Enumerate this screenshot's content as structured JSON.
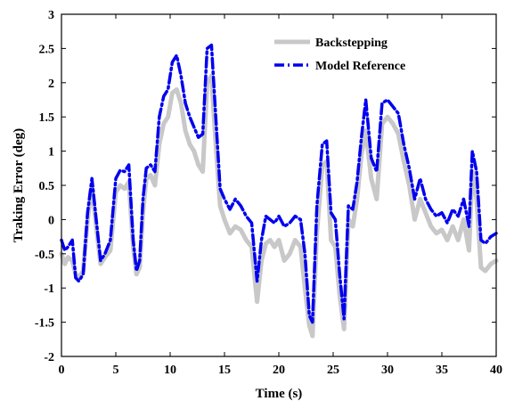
{
  "chart_data": {
    "type": "line",
    "title": "",
    "xlabel": "Time (s)",
    "ylabel": "Traking Error (deg)",
    "xlim": [
      0,
      40
    ],
    "ylim": [
      -2,
      3
    ],
    "xticks": [
      "0",
      "5",
      "10",
      "15",
      "20",
      "25",
      "30",
      "35",
      "40"
    ],
    "yticks": [
      "-2",
      "-1.5",
      "-1",
      "-0.5",
      "0",
      "0.5",
      "1",
      "1.5",
      "2",
      "2.5",
      "3"
    ],
    "grid": false,
    "legend_position": "top-right",
    "series": [
      {
        "name": "Backstepping",
        "color": "#c8c8c8",
        "style": "solid",
        "x": [
          0,
          0.3,
          0.6,
          1.0,
          1.3,
          1.6,
          2.0,
          2.4,
          2.8,
          3.2,
          3.6,
          4.0,
          4.5,
          5.0,
          5.4,
          5.8,
          6.2,
          6.6,
          6.9,
          7.2,
          7.5,
          7.8,
          8.2,
          8.6,
          9.0,
          9.4,
          9.8,
          10.2,
          10.6,
          11.0,
          11.4,
          11.8,
          12.2,
          12.6,
          13.0,
          13.4,
          13.8,
          14.2,
          14.6,
          15.0,
          15.5,
          16.0,
          16.5,
          17.0,
          17.5,
          18.0,
          18.4,
          18.8,
          19.2,
          19.6,
          20.0,
          20.5,
          21.0,
          21.5,
          22.0,
          22.4,
          22.8,
          23.1,
          23.5,
          24.0,
          24.4,
          24.8,
          25.2,
          25.6,
          26.0,
          26.4,
          26.8,
          27.2,
          27.6,
          28.0,
          28.5,
          29.0,
          29.5,
          30.0,
          30.5,
          31.0,
          31.5,
          32.0,
          32.5,
          33.0,
          33.5,
          34.0,
          34.5,
          35.0,
          35.5,
          36.0,
          36.5,
          37.0,
          37.5,
          37.8,
          38.2,
          38.6,
          39.0,
          39.5,
          40.0
        ],
        "values": [
          -0.5,
          -0.65,
          -0.55,
          -0.6,
          -0.8,
          -0.85,
          -0.75,
          0.0,
          0.5,
          -0.1,
          -0.65,
          -0.55,
          -0.45,
          0.4,
          0.5,
          0.45,
          0.55,
          -0.4,
          -0.8,
          -0.7,
          0.1,
          0.6,
          0.65,
          0.5,
          1.1,
          1.4,
          1.5,
          1.85,
          1.9,
          1.7,
          1.3,
          1.1,
          1.0,
          0.8,
          0.7,
          2.0,
          2.1,
          1.1,
          0.2,
          0.0,
          -0.2,
          -0.1,
          -0.15,
          -0.3,
          -0.4,
          -1.2,
          -0.6,
          -0.35,
          -0.3,
          -0.4,
          -0.3,
          -0.6,
          -0.5,
          -0.3,
          -0.4,
          -1.0,
          -1.55,
          -1.7,
          -0.2,
          0.8,
          0.85,
          -0.3,
          -0.4,
          -1.1,
          -1.6,
          0.0,
          -0.1,
          0.3,
          0.95,
          1.3,
          0.6,
          0.3,
          1.4,
          1.5,
          1.4,
          1.25,
          0.85,
          0.5,
          0.0,
          0.3,
          0.1,
          -0.1,
          -0.2,
          -0.15,
          -0.3,
          -0.1,
          -0.3,
          0.0,
          -0.45,
          0.7,
          0.3,
          -0.7,
          -0.75,
          -0.65,
          -0.6
        ]
      },
      {
        "name": "Model Reference",
        "color": "#0000ee",
        "style": "dash-dot",
        "x": [
          0,
          0.3,
          0.6,
          1.0,
          1.3,
          1.6,
          2.0,
          2.4,
          2.8,
          3.2,
          3.6,
          4.0,
          4.5,
          5.0,
          5.4,
          5.8,
          6.2,
          6.6,
          6.9,
          7.2,
          7.5,
          7.8,
          8.2,
          8.6,
          9.0,
          9.4,
          9.8,
          10.2,
          10.6,
          11.0,
          11.4,
          11.8,
          12.2,
          12.6,
          13.0,
          13.4,
          13.8,
          14.2,
          14.6,
          15.0,
          15.5,
          16.0,
          16.5,
          17.0,
          17.5,
          18.0,
          18.4,
          18.8,
          19.2,
          19.6,
          20.0,
          20.5,
          21.0,
          21.5,
          22.0,
          22.4,
          22.8,
          23.1,
          23.5,
          24.0,
          24.4,
          24.8,
          25.2,
          25.6,
          26.0,
          26.4,
          26.8,
          27.2,
          27.6,
          28.0,
          28.5,
          29.0,
          29.5,
          30.0,
          30.5,
          31.0,
          31.5,
          32.0,
          32.5,
          33.0,
          33.5,
          34.0,
          34.5,
          35.0,
          35.5,
          36.0,
          36.5,
          37.0,
          37.5,
          37.8,
          38.2,
          38.6,
          39.0,
          39.5,
          40.0
        ],
        "values": [
          -0.3,
          -0.45,
          -0.4,
          -0.3,
          -0.85,
          -0.9,
          -0.8,
          0.1,
          0.6,
          0.0,
          -0.6,
          -0.5,
          -0.3,
          0.6,
          0.72,
          0.7,
          0.8,
          -0.3,
          -0.75,
          -0.6,
          0.3,
          0.75,
          0.8,
          0.7,
          1.5,
          1.8,
          1.9,
          2.3,
          2.4,
          2.1,
          1.7,
          1.5,
          1.35,
          1.2,
          1.25,
          2.5,
          2.55,
          1.5,
          0.45,
          0.3,
          0.15,
          0.3,
          0.2,
          0.05,
          -0.05,
          -0.9,
          -0.3,
          0.05,
          0.0,
          -0.05,
          0.05,
          -0.1,
          -0.05,
          0.05,
          0.0,
          -0.5,
          -1.4,
          -1.5,
          0.2,
          1.1,
          1.15,
          0.1,
          0.0,
          -0.8,
          -1.45,
          0.2,
          0.15,
          0.55,
          1.2,
          1.75,
          0.9,
          0.7,
          1.7,
          1.75,
          1.65,
          1.55,
          1.1,
          0.75,
          0.3,
          0.6,
          0.3,
          0.15,
          0.05,
          0.1,
          -0.05,
          0.15,
          0.05,
          0.3,
          -0.1,
          1.0,
          0.7,
          -0.3,
          -0.35,
          -0.25,
          -0.2
        ]
      }
    ]
  }
}
